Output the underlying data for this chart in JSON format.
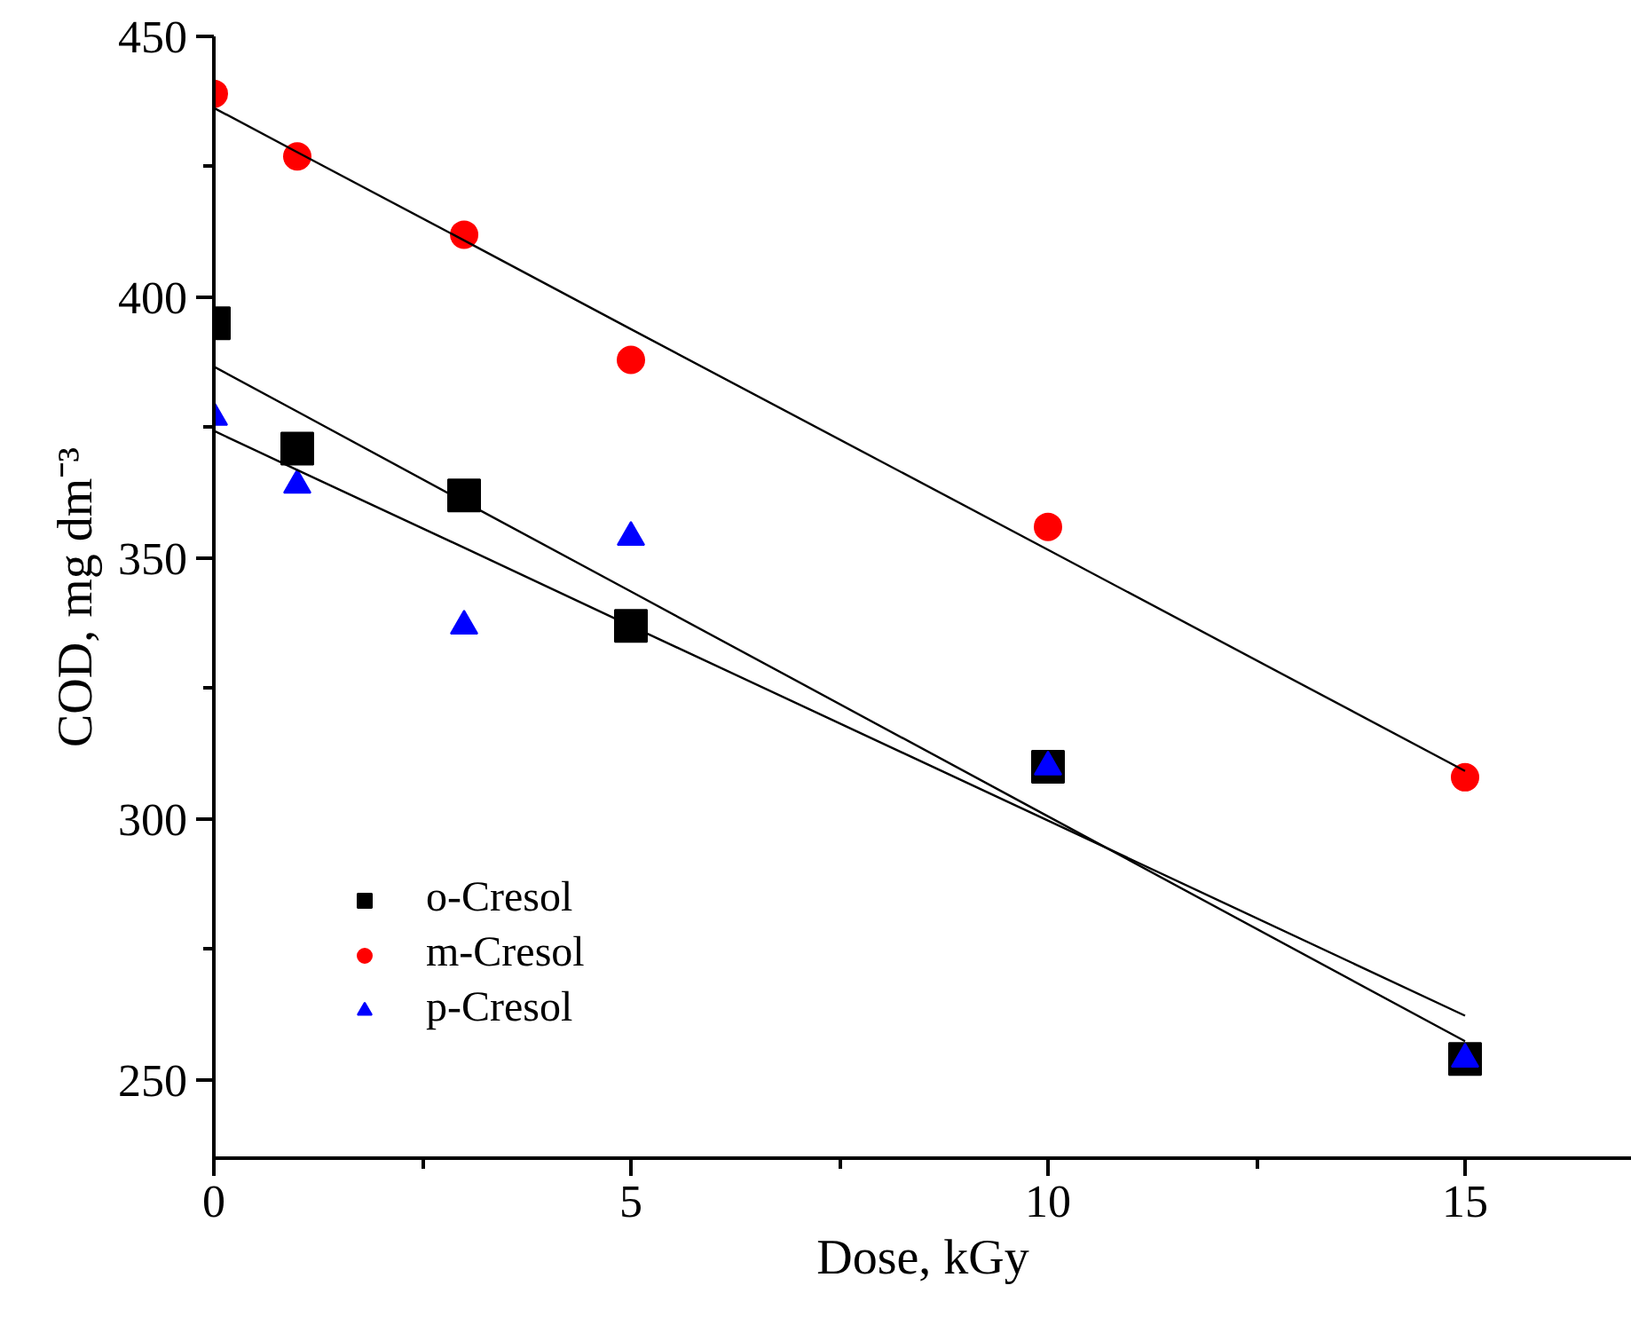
{
  "chart_data": {
    "type": "scatter",
    "xlabel": "Dose, kGy",
    "ylabel": "COD, mg dm⁻³",
    "x": [
      0,
      1,
      3,
      5,
      10,
      15
    ],
    "series": [
      {
        "name": "o-Cresol",
        "color": "#000000",
        "marker": "square",
        "values": [
          395,
          371,
          362,
          337,
          310,
          254
        ]
      },
      {
        "name": "m-Cresol",
        "color": "#ff0000",
        "marker": "circle",
        "values": [
          439,
          427,
          412,
          388,
          356,
          308
        ]
      },
      {
        "name": "p-Cresol",
        "color": "#0000ff",
        "marker": "triangle",
        "values": [
          377,
          364,
          337,
          354,
          310,
          254
        ]
      },
      {
        "type": "line",
        "color": "#000000",
        "values": [
          386.7,
          378.1,
          360.8,
          343.6,
          300.5,
          257.4
        ]
      },
      {
        "type": "line",
        "color": "#000000",
        "values": [
          436.3,
          427.8,
          410.9,
          393.9,
          351.6,
          309.2
        ]
      },
      {
        "type": "line",
        "color": "#000000",
        "values": [
          374.4,
          366.9,
          352.0,
          337.0,
          299.7,
          262.3
        ]
      }
    ],
    "xlim": [
      0,
      17
    ],
    "xticks": [
      0,
      5,
      10,
      15
    ],
    "ylim": [
      235,
      450
    ],
    "yticks": [
      250,
      300,
      350,
      400,
      450
    ],
    "grid": false,
    "legend": "bottom left"
  }
}
